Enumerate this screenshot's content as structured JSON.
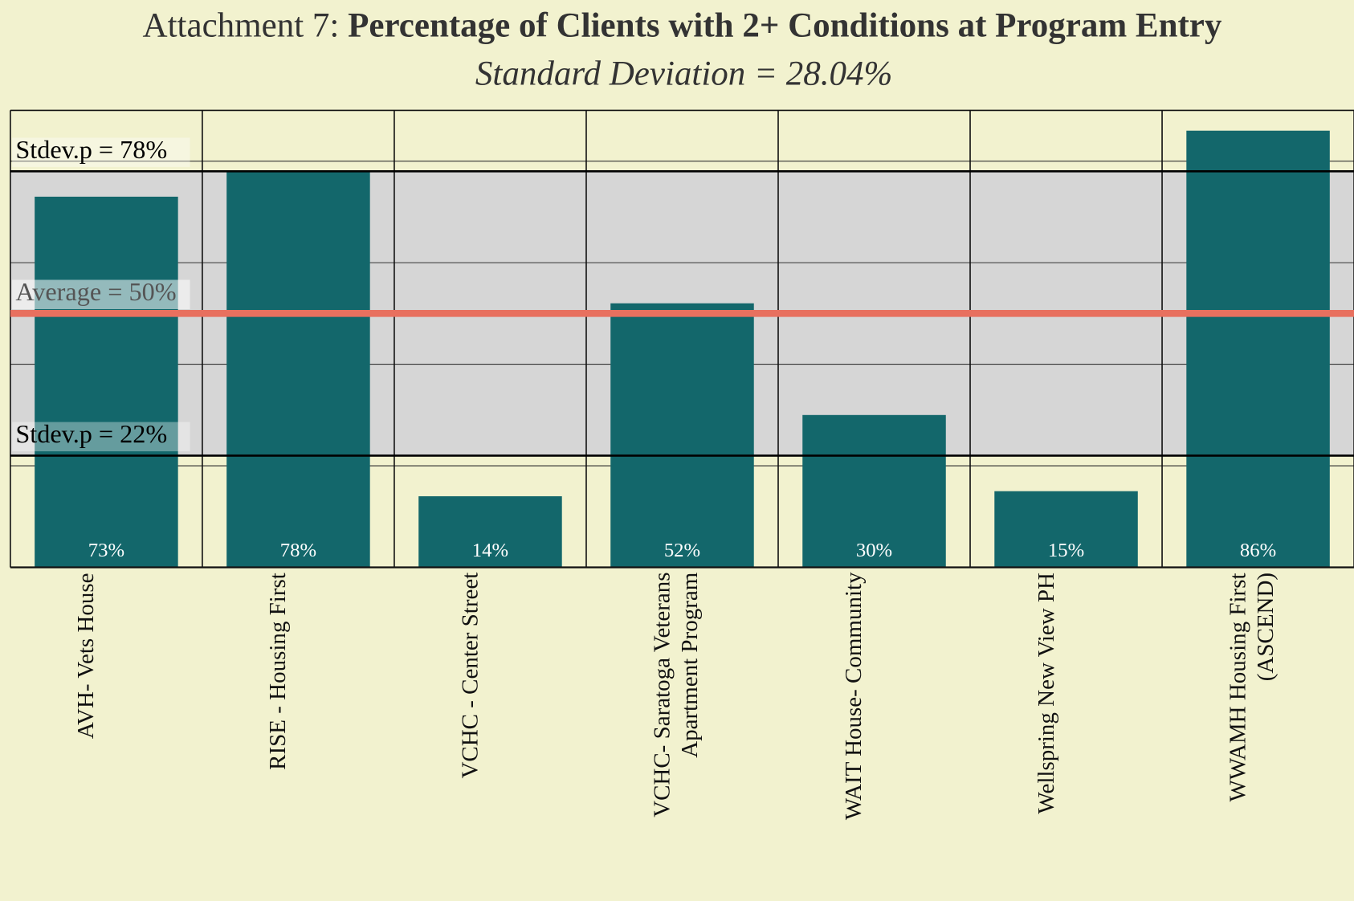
{
  "chart_data": {
    "type": "bar",
    "title_lead": "Attachment 7:",
    "title": "Percentage of Clients with 2+ Conditions at Program Entry",
    "subtitle": "Standard Deviation = 28.04%",
    "categories": [
      "AVH- Vets House",
      "RISE - Housing First",
      "VCHC - Center Street",
      "VCHC- Saratoga Veterans Apartment Program",
      "WAIT House- Community",
      "Wellspring New View PH",
      "WWAMH Housing First (ASCEND)"
    ],
    "values": [
      73,
      78,
      14,
      52,
      30,
      15,
      86
    ],
    "value_labels": [
      "73%",
      "78%",
      "14%",
      "52%",
      "30%",
      "15%",
      "86%"
    ],
    "color": "#13676b",
    "ylim": [
      0,
      90
    ],
    "yticks": [
      0,
      20,
      40,
      60,
      80
    ],
    "grid": true,
    "reference_lines": [
      {
        "label": "Stdev.p = 78%",
        "value": 78,
        "color": "#000000"
      },
      {
        "label": "Average = 50%",
        "value": 50,
        "color": "#e8705f"
      },
      {
        "label": "Stdev.p = 22%",
        "value": 22,
        "color": "#000000"
      }
    ],
    "band_color": "#d6d6d6"
  }
}
